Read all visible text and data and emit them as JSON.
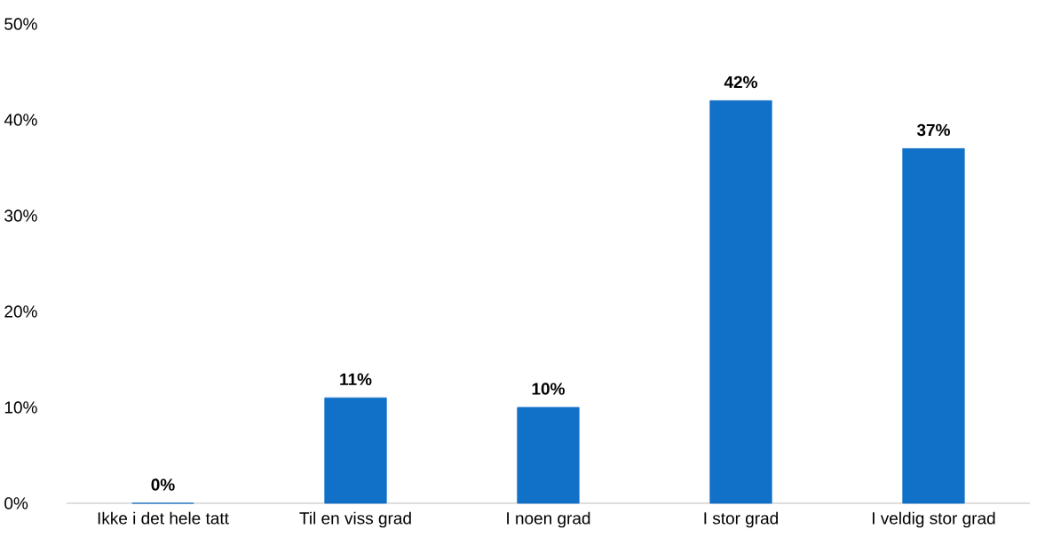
{
  "chart_data": {
    "type": "bar",
    "categories": [
      "Ikke i det hele tatt",
      "Til en viss grad",
      "I noen grad",
      "I stor grad",
      "I veldig stor grad"
    ],
    "values": [
      0,
      11,
      10,
      42,
      37
    ],
    "value_labels": [
      "0%",
      "11%",
      "10%",
      "42%",
      "37%"
    ],
    "color": "#1170c8",
    "ylim": [
      0,
      50
    ],
    "yticks": [
      {
        "value": 0,
        "label": "0%"
      },
      {
        "value": 10,
        "label": "10%"
      },
      {
        "value": 20,
        "label": "20%"
      },
      {
        "value": 30,
        "label": "30%"
      },
      {
        "value": 40,
        "label": "40%"
      },
      {
        "value": 50,
        "label": "50%"
      }
    ]
  }
}
